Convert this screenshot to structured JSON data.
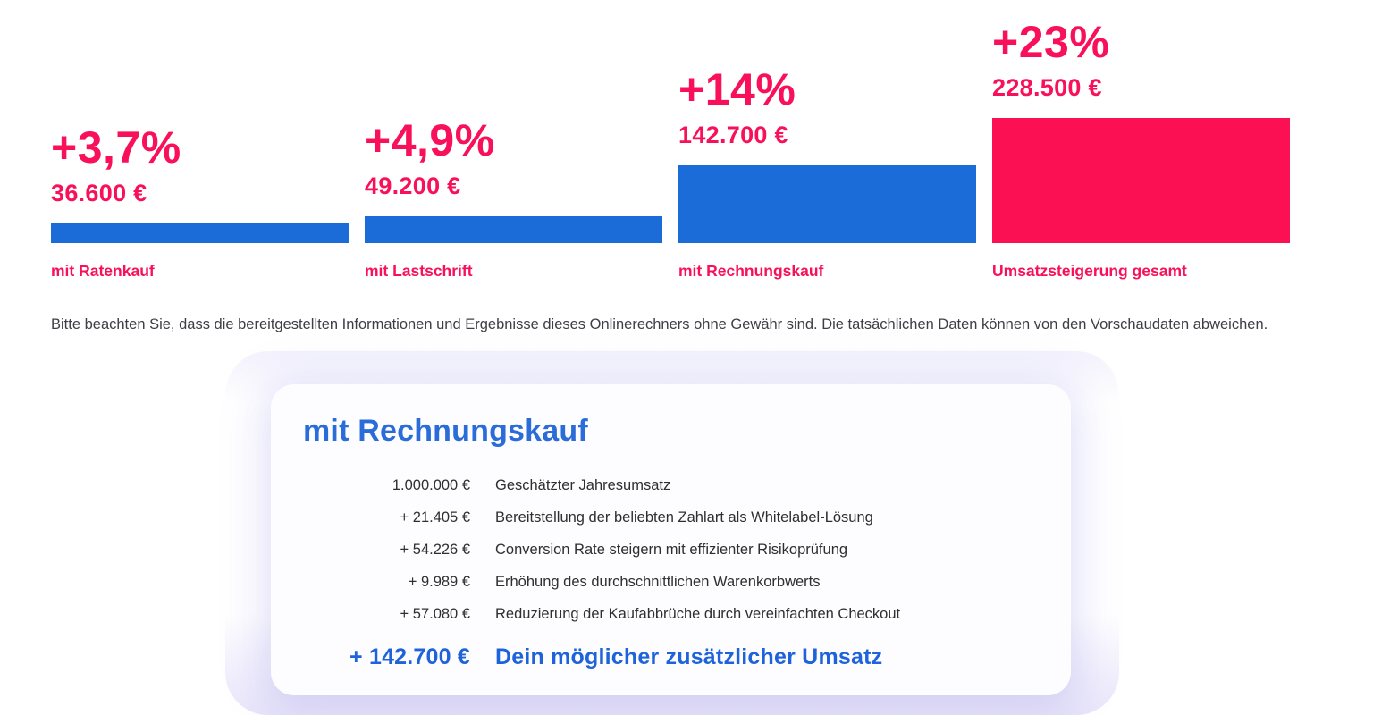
{
  "chart_data": {
    "type": "bar",
    "categories": [
      "mit Ratenkauf",
      "mit Lastschrift",
      "mit Rechnungskauf",
      "Umsatzsteigerung gesamt"
    ],
    "values": [
      36600,
      49200,
      142700,
      228500
    ],
    "percent_labels": [
      "+3,7%",
      "+4,9%",
      "+14%",
      "+23%"
    ],
    "amount_labels": [
      "36.600 €",
      "49.200 €",
      "142.700 €",
      "228.500 €"
    ],
    "bar_colors": [
      "#1B6BD8",
      "#1B6BD8",
      "#1B6BD8",
      "#FB1153"
    ],
    "title": "",
    "xlabel": "",
    "ylabel": "",
    "ylim": [
      0,
      228500
    ],
    "grid": false,
    "legend": false,
    "accent_pink": "#F8115A",
    "accent_blue": "#1B6BD8"
  },
  "disclaimer": "Bitte beachten Sie, dass die bereitgestellten Informationen und Ergebnisse dieses Onlinerechners ohne Gewähr sind. Die tatsächlichen Daten können von den Vorschaudaten abweichen.",
  "card": {
    "title": "mit Rechnungskauf",
    "rows": [
      {
        "amount": "1.000.000 €",
        "label": "Geschätzter Jahresumsatz"
      },
      {
        "amount": "+ 21.405 €",
        "label": "Bereitstellung der beliebten Zahlart als Whitelabel-Lösung"
      },
      {
        "amount": "+ 54.226 €",
        "label": "Conversion Rate steigern mit effizienter Risikoprüfung"
      },
      {
        "amount": "+ 9.989 €",
        "label": "Erhöhung des durchschnittlichen Warenkorbwerts"
      },
      {
        "amount": "+ 57.080 €",
        "label": "Reduzierung der Kaufabbrüche durch vereinfachten Checkout"
      }
    ],
    "total": {
      "amount": "+ 142.700 €",
      "label": "Dein möglicher zusätzlicher Umsatz"
    }
  }
}
